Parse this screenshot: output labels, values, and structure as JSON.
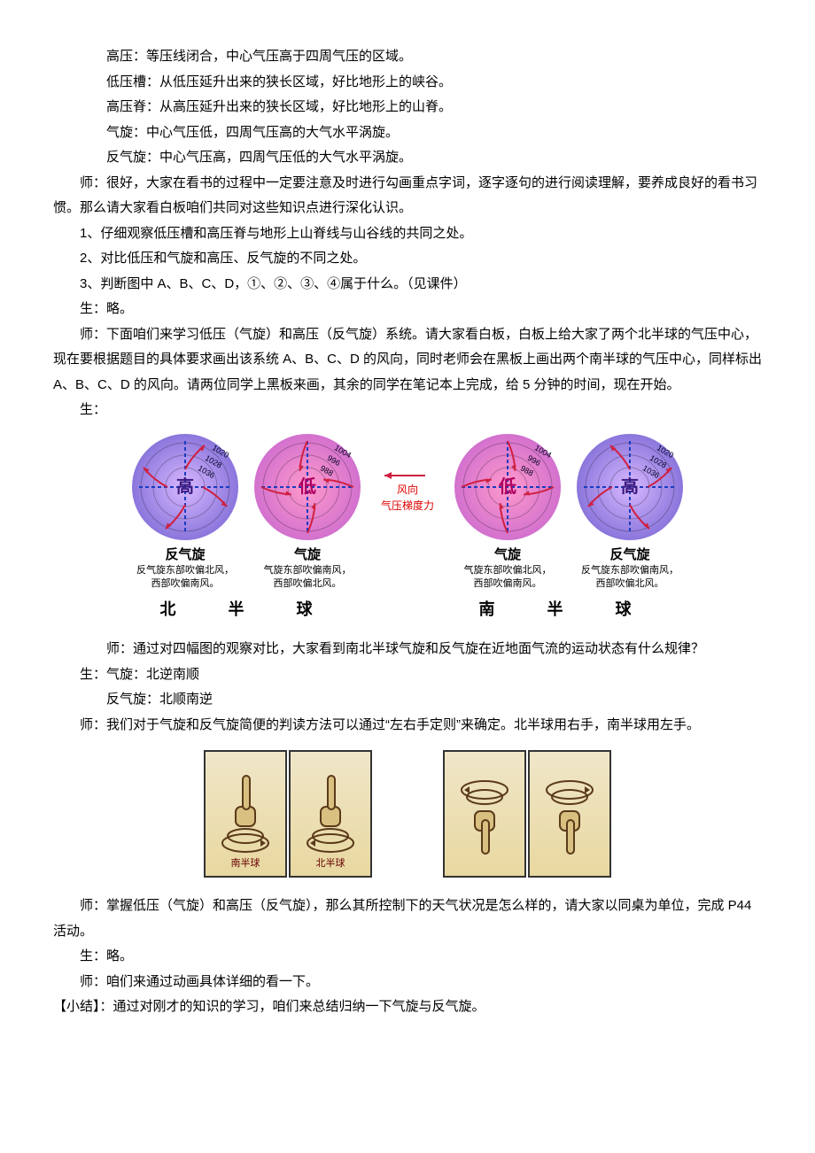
{
  "defs": {
    "gaoya": "高压：等压线闭合，中心气压高于四周气压的区域。",
    "diyacao": "低压槽：从低压延升出来的狭长区域，好比地形上的峡谷。",
    "gaoyaji": "高压脊：从高压延升出来的狭长区域，好比地形上的山脊。",
    "qixuan": "气旋：中心气压低，四周气压高的大气水平涡旋。",
    "fanqixuan": "反气旋：中心气压高，四周气压低的大气水平涡旋。"
  },
  "para": {
    "t1": "师：很好，大家在看书的过程中一定要注意及时进行勾画重点字词，逐字逐句的进行阅读理解，要养成良好的看书习惯。那么请大家看白板咱们共同对这些知识点进行深化认识。",
    "t2": "1、仔细观察低压槽和高压脊与地形上山脊线与山谷线的共同之处。",
    "t3": "2、对比低压和气旋和高压、反气旋的不同之处。",
    "t4": "3、判断图中 A、B、C、D，①、②、③、④属于什么。（见课件）",
    "t5": "生：略。",
    "t6a": "师：下面咱们来学习低压（气旋）和高压（反气旋）系统。请大家看白板，白板上给大家了两个北半球的气压中心，现在要根据题目的具体要求画出该系统 A、B、C、D 的风向，同时老师会在黑板上画出两个南半球的气压中心，同样标出 A、B、C、D 的风向。请两位同学上黑板来画，其余的同学在笔记本上完成，给 5 分钟的时间，现在开始。",
    "t7": "生：",
    "t8": "师：通过对四幅图的观察对比，大家看到南北半球气旋和反气旋在近地面气流的运动状态有什么规律？",
    "t9": "生：气旋：北逆南顺",
    "t10": "反气旋：北顺南逆",
    "t11": "师：我们对于气旋和反气旋简便的判读方法可以通过“左右手定则”来确定。北半球用右手，南半球用左手。",
    "t12": "师：掌握低压（气旋）和高压（反气旋），那么其所控制下的天气状况是怎么样的，请大家以同桌为单位，完成 P44 活动。",
    "t13": "生：略。",
    "t14": "师：咱们来通过动画具体详细的看一下。",
    "t15": "【小结】：通过对刚才的知识的学习，咱们来总结归纳一下气旋与反气旋。"
  },
  "fig": {
    "circles": [
      {
        "center": "高",
        "type": "anticyclone",
        "hemi": "north",
        "gradient_inner": "#d8b8ff",
        "gradient_outer": "#6a5acd",
        "isobars": [
          "1036",
          "1028",
          "1020"
        ],
        "arrow_color": "#d02040",
        "cross_color": "#1a3cc0",
        "caption": "反气旋",
        "sub": "反气旋东部吹偏北风，\n西部吹偏南风。"
      },
      {
        "center": "低",
        "type": "cyclone",
        "hemi": "north",
        "gradient_inner": "#ff9acb",
        "gradient_outer": "#c060d0",
        "isobars": [
          "988",
          "996",
          "1004"
        ],
        "arrow_color": "#d02040",
        "cross_color": "#1a3cc0",
        "caption": "气旋",
        "sub": "气旋东部吹偏南风，\n西部吹偏北风。"
      },
      {
        "center": "低",
        "type": "cyclone",
        "hemi": "south",
        "gradient_inner": "#ff9acb",
        "gradient_outer": "#c060d0",
        "isobars": [
          "988",
          "996",
          "1004"
        ],
        "arrow_color": "#d02040",
        "cross_color": "#1a3cc0",
        "caption": "气旋",
        "sub": "气旋东部吹偏北风，\n西部吹偏南风。"
      },
      {
        "center": "高",
        "type": "anticyclone",
        "hemi": "south",
        "gradient_inner": "#d8b8ff",
        "gradient_outer": "#6a5acd",
        "isobars": [
          "1036",
          "1028",
          "1020"
        ],
        "arrow_color": "#d02040",
        "cross_color": "#1a3cc0",
        "caption": "反气旋",
        "sub": "反气旋东部吹偏南风，\n西部吹偏北风。"
      }
    ],
    "legend": {
      "wind": "风向",
      "grad": "气压梯度力",
      "arrow_color": "#d02040"
    },
    "hemi_north": "北  半  球",
    "hemi_south": "南  半  球"
  },
  "hands": {
    "pair1": [
      {
        "label": "南半球",
        "dir": "up",
        "spiral": "cw"
      },
      {
        "label": "北半球",
        "dir": "up",
        "spiral": "ccw"
      }
    ],
    "pair2": [
      {
        "label": "",
        "dir": "down",
        "spiral": "ccw"
      },
      {
        "label": "",
        "dir": "down",
        "spiral": "cw"
      }
    ],
    "stroke": "#5a3a1a",
    "fill": "#d8c080"
  }
}
